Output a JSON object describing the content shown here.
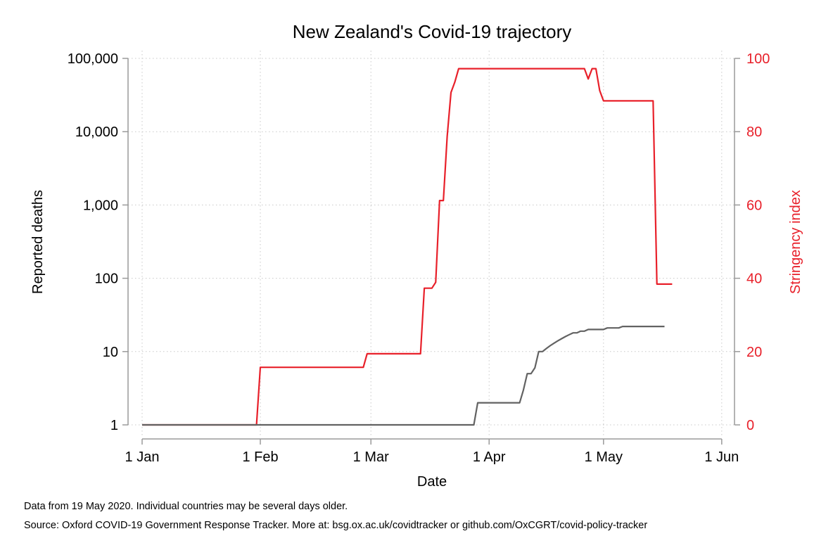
{
  "chart_data": {
    "type": "line",
    "title": "New Zealand's Covid-19 trajectory",
    "xlabel": "Date",
    "ylabel_left": "Reported deaths",
    "ylabel_right": "Stringency index",
    "x_ticks": [
      "1 Jan",
      "1 Feb",
      "1 Mar",
      "1 Apr",
      "1 May",
      "1 Jun"
    ],
    "x_tick_days": [
      0,
      31,
      60,
      91,
      121,
      152
    ],
    "y_left_scale": "log",
    "y_left_ticks": [
      {
        "value": 1,
        "label": "1"
      },
      {
        "value": 10,
        "label": "10"
      },
      {
        "value": 100,
        "label": "100"
      },
      {
        "value": 1000,
        "label": "1,000"
      },
      {
        "value": 10000,
        "label": "10,000"
      },
      {
        "value": 100000,
        "label": "100,000"
      }
    ],
    "y_left_range": [
      1,
      100000
    ],
    "y_right_ticks": [
      0,
      20,
      40,
      60,
      80,
      100
    ],
    "y_right_range": [
      0,
      100
    ],
    "grid": true,
    "series": [
      {
        "name": "Stringency index",
        "axis": "right",
        "color": "#e8202a",
        "points": [
          [
            "2020-01-01",
            0
          ],
          [
            "2020-01-31",
            0
          ],
          [
            "2020-02-01",
            15.7
          ],
          [
            "2020-02-28",
            15.7
          ],
          [
            "2020-02-29",
            19.4
          ],
          [
            "2020-03-14",
            19.4
          ],
          [
            "2020-03-15",
            37.3
          ],
          [
            "2020-03-17",
            37.3
          ],
          [
            "2020-03-18",
            38.9
          ],
          [
            "2020-03-19",
            61.2
          ],
          [
            "2020-03-20",
            61.2
          ],
          [
            "2020-03-21",
            78.7
          ],
          [
            "2020-03-22",
            90.7
          ],
          [
            "2020-03-23",
            93.5
          ],
          [
            "2020-03-24",
            97.2
          ],
          [
            "2020-04-26",
            97.2
          ],
          [
            "2020-04-27",
            94.4
          ],
          [
            "2020-04-28",
            97.2
          ],
          [
            "2020-04-29",
            97.2
          ],
          [
            "2020-04-30",
            91.2
          ],
          [
            "2020-05-01",
            88.4
          ],
          [
            "2020-05-14",
            88.4
          ],
          [
            "2020-05-15",
            38.4
          ],
          [
            "2020-05-19",
            38.4
          ]
        ]
      },
      {
        "name": "Reported deaths",
        "axis": "left",
        "color": "#626262",
        "points": [
          [
            "2020-01-01",
            1
          ],
          [
            "2020-03-28",
            1
          ],
          [
            "2020-03-29",
            2
          ],
          [
            "2020-04-09",
            2
          ],
          [
            "2020-04-10",
            3
          ],
          [
            "2020-04-11",
            5
          ],
          [
            "2020-04-12",
            5
          ],
          [
            "2020-04-13",
            6
          ],
          [
            "2020-04-14",
            10
          ],
          [
            "2020-04-15",
            10
          ],
          [
            "2020-04-16",
            11
          ],
          [
            "2020-04-17",
            12
          ],
          [
            "2020-04-18",
            13
          ],
          [
            "2020-04-19",
            14
          ],
          [
            "2020-04-20",
            15
          ],
          [
            "2020-04-21",
            16
          ],
          [
            "2020-04-22",
            17
          ],
          [
            "2020-04-23",
            18
          ],
          [
            "2020-04-24",
            18
          ],
          [
            "2020-04-25",
            19
          ],
          [
            "2020-04-26",
            19
          ],
          [
            "2020-04-27",
            20
          ],
          [
            "2020-04-28",
            20
          ],
          [
            "2020-05-01",
            20
          ],
          [
            "2020-05-02",
            21
          ],
          [
            "2020-05-05",
            21
          ],
          [
            "2020-05-06",
            22
          ],
          [
            "2020-05-17",
            22
          ]
        ]
      }
    ]
  },
  "notes": {
    "line1": "Data from 19 May 2020. Individual countries may be several days older.",
    "line2": "Source: Oxford COVID-19 Government Response Tracker. More at: bsg.ox.ac.uk/covidtracker or github.com/OxCGRT/covid-policy-tracker"
  }
}
